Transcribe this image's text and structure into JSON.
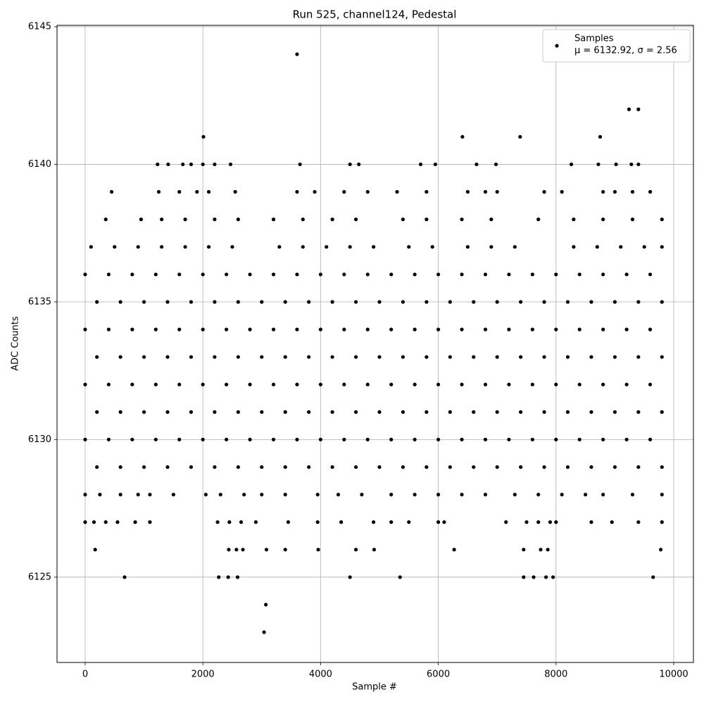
{
  "chart_data": {
    "type": "scatter",
    "title": "Run 525, channel124, Pedestal",
    "xlabel": "Sample #",
    "ylabel": "ADC Counts",
    "xlim": [
      -478,
      10335
    ],
    "ylim": [
      6121.9,
      6145.05
    ],
    "xticks": [
      0,
      2000,
      4000,
      6000,
      8000,
      10000
    ],
    "yticks": [
      6125,
      6130,
      6135,
      6140,
      6145
    ],
    "grid": true,
    "legend": "upper right",
    "series": [
      {
        "name": "Samples",
        "label": "μ = 6132.92, σ = 2.56",
        "color": "#000000",
        "x": [
          0,
          400,
          800,
          1200,
          1600,
          2000,
          2400,
          2800,
          3200,
          3600,
          4000,
          4400,
          4800,
          5200,
          5600,
          6000,
          6400,
          6800,
          7200,
          7600,
          8000,
          8400,
          8800,
          9200,
          9600,
          200,
          600,
          1000,
          1400,
          1800,
          2200,
          2600,
          3000,
          3400,
          3800,
          4200,
          4600,
          5000,
          5400,
          5800,
          6200,
          6600,
          7000,
          7400,
          7800,
          8200,
          8600,
          9000,
          9400,
          9800,
          0,
          400,
          800,
          1200,
          1600,
          2000,
          2400,
          2800,
          3200,
          3600,
          4000,
          4400,
          4800,
          5200,
          5600,
          6000,
          6400,
          6800,
          7200,
          7600,
          8000,
          8400,
          8800,
          9200,
          9600,
          200,
          600,
          1000,
          1400,
          1800,
          2200,
          2600,
          3000,
          3400,
          3800,
          4200,
          4600,
          5000,
          5400,
          5800,
          6200,
          6600,
          7000,
          7400,
          7800,
          8200,
          8600,
          9000,
          9400,
          9800,
          0,
          400,
          800,
          1200,
          1600,
          2000,
          2400,
          2800,
          3200,
          3600,
          4000,
          4400,
          4800,
          5200,
          5600,
          6000,
          6400,
          6800,
          7200,
          7600,
          8000,
          8400,
          8800,
          9200,
          9600,
          200,
          600,
          1000,
          1400,
          1800,
          2200,
          2600,
          3000,
          3400,
          3800,
          4200,
          4600,
          5000,
          5400,
          5800,
          6200,
          6600,
          7000,
          7400,
          7800,
          8200,
          8600,
          9000,
          9400,
          9800,
          0,
          400,
          800,
          1200,
          1600,
          2000,
          2400,
          2800,
          3200,
          3600,
          4000,
          4400,
          4800,
          5200,
          5600,
          6000,
          6400,
          6800,
          7200,
          7600,
          8000,
          8400,
          8800,
          9200,
          9600,
          200,
          600,
          1000,
          1400,
          1800,
          2200,
          2600,
          3000,
          3400,
          3800,
          4200,
          4600,
          5000,
          5400,
          5800,
          6200,
          6600,
          7000,
          7400,
          7800,
          8200,
          8600,
          9000,
          9400,
          9800,
          100,
          500,
          900,
          1300,
          1700,
          2100,
          2500,
          3300,
          3700,
          4100,
          4500,
          4900,
          5500,
          5900,
          6500,
          6900,
          7300,
          8300,
          8700,
          9100,
          9500,
          9800,
          350,
          950,
          1300,
          1700,
          2200,
          2600,
          3200,
          3700,
          4200,
          4600,
          5400,
          5800,
          6400,
          6900,
          7700,
          8300,
          8800,
          9300,
          9800,
          450,
          1250,
          1600,
          1900,
          2100,
          2550,
          3600,
          3900,
          4400,
          4800,
          5300,
          5800,
          6500,
          6800,
          7000,
          7800,
          8100,
          8800,
          9000,
          9300,
          9600,
          1230,
          1410,
          1660,
          1800,
          2000,
          2200,
          2470,
          3650,
          4500,
          4650,
          5700,
          5950,
          6650,
          6980,
          8260,
          8720,
          9020,
          9280,
          9400,
          2010,
          6410,
          7390,
          8750,
          9240,
          9400,
          3600,
          0,
          250,
          600,
          900,
          1100,
          1500,
          2050,
          2300,
          2700,
          3000,
          3400,
          3950,
          4300,
          4700,
          5200,
          5600,
          6000,
          6400,
          6800,
          7300,
          7700,
          8100,
          8500,
          8800,
          9300,
          9800,
          0,
          150,
          350,
          550,
          850,
          1100,
          2250,
          2450,
          2650,
          2900,
          3450,
          3950,
          4350,
          4900,
          5200,
          5500,
          6000,
          6100,
          7150,
          7500,
          7700,
          7900,
          8000,
          8600,
          8950,
          9400,
          9800,
          170,
          2440,
          2570,
          2680,
          3080,
          3400,
          3960,
          4600,
          4910,
          6270,
          7450,
          7740,
          7860,
          9780,
          670,
          2270,
          2430,
          2590,
          4500,
          5350,
          7450,
          7620,
          7830,
          7950,
          9650,
          3070,
          3040
        ],
        "y": [
          6136,
          6136,
          6136,
          6136,
          6136,
          6136,
          6136,
          6136,
          6136,
          6136,
          6136,
          6136,
          6136,
          6136,
          6136,
          6136,
          6136,
          6136,
          6136,
          6136,
          6136,
          6136,
          6136,
          6136,
          6136,
          6135,
          6135,
          6135,
          6135,
          6135,
          6135,
          6135,
          6135,
          6135,
          6135,
          6135,
          6135,
          6135,
          6135,
          6135,
          6135,
          6135,
          6135,
          6135,
          6135,
          6135,
          6135,
          6135,
          6135,
          6135,
          6134,
          6134,
          6134,
          6134,
          6134,
          6134,
          6134,
          6134,
          6134,
          6134,
          6134,
          6134,
          6134,
          6134,
          6134,
          6134,
          6134,
          6134,
          6134,
          6134,
          6134,
          6134,
          6134,
          6134,
          6134,
          6133,
          6133,
          6133,
          6133,
          6133,
          6133,
          6133,
          6133,
          6133,
          6133,
          6133,
          6133,
          6133,
          6133,
          6133,
          6133,
          6133,
          6133,
          6133,
          6133,
          6133,
          6133,
          6133,
          6133,
          6133,
          6132,
          6132,
          6132,
          6132,
          6132,
          6132,
          6132,
          6132,
          6132,
          6132,
          6132,
          6132,
          6132,
          6132,
          6132,
          6132,
          6132,
          6132,
          6132,
          6132,
          6132,
          6132,
          6132,
          6132,
          6132,
          6131,
          6131,
          6131,
          6131,
          6131,
          6131,
          6131,
          6131,
          6131,
          6131,
          6131,
          6131,
          6131,
          6131,
          6131,
          6131,
          6131,
          6131,
          6131,
          6131,
          6131,
          6131,
          6131,
          6131,
          6131,
          6130,
          6130,
          6130,
          6130,
          6130,
          6130,
          6130,
          6130,
          6130,
          6130,
          6130,
          6130,
          6130,
          6130,
          6130,
          6130,
          6130,
          6130,
          6130,
          6130,
          6130,
          6130,
          6130,
          6130,
          6130,
          6129,
          6129,
          6129,
          6129,
          6129,
          6129,
          6129,
          6129,
          6129,
          6129,
          6129,
          6129,
          6129,
          6129,
          6129,
          6129,
          6129,
          6129,
          6129,
          6129,
          6129,
          6129,
          6129,
          6129,
          6129,
          6137,
          6137,
          6137,
          6137,
          6137,
          6137,
          6137,
          6137,
          6137,
          6137,
          6137,
          6137,
          6137,
          6137,
          6137,
          6137,
          6137,
          6137,
          6137,
          6137,
          6137,
          6137,
          6138,
          6138,
          6138,
          6138,
          6138,
          6138,
          6138,
          6138,
          6138,
          6138,
          6138,
          6138,
          6138,
          6138,
          6138,
          6138,
          6138,
          6138,
          6138,
          6139,
          6139,
          6139,
          6139,
          6139,
          6139,
          6139,
          6139,
          6139,
          6139,
          6139,
          6139,
          6139,
          6139,
          6139,
          6139,
          6139,
          6139,
          6139,
          6139,
          6139,
          6140,
          6140,
          6140,
          6140,
          6140,
          6140,
          6140,
          6140,
          6140,
          6140,
          6140,
          6140,
          6140,
          6140,
          6140,
          6140,
          6140,
          6140,
          6140,
          6141,
          6141,
          6141,
          6141,
          6142,
          6142,
          6144,
          6128,
          6128,
          6128,
          6128,
          6128,
          6128,
          6128,
          6128,
          6128,
          6128,
          6128,
          6128,
          6128,
          6128,
          6128,
          6128,
          6128,
          6128,
          6128,
          6128,
          6128,
          6128,
          6128,
          6128,
          6128,
          6128,
          6127,
          6127,
          6127,
          6127,
          6127,
          6127,
          6127,
          6127,
          6127,
          6127,
          6127,
          6127,
          6127,
          6127,
          6127,
          6127,
          6127,
          6127,
          6127,
          6127,
          6127,
          6127,
          6127,
          6127,
          6127,
          6127,
          6127,
          6126,
          6126,
          6126,
          6126,
          6126,
          6126,
          6126,
          6126,
          6126,
          6126,
          6126,
          6126,
          6126,
          6126,
          6125,
          6125,
          6125,
          6125,
          6125,
          6125,
          6125,
          6125,
          6125,
          6125,
          6125,
          6124,
          6123
        ]
      }
    ]
  }
}
